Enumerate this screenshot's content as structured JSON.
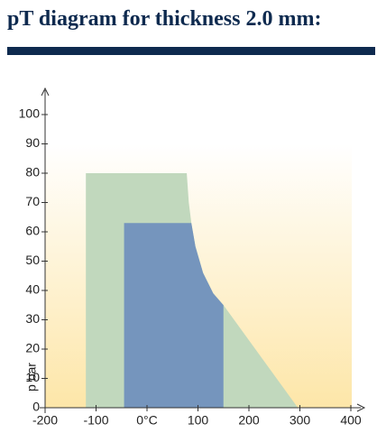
{
  "chart_data": {
    "type": "area",
    "title": "pT diagram for thickness 2.0 mm:",
    "y_label": "p bar",
    "xlim": [
      -200,
      400
    ],
    "ylim": [
      0,
      100
    ],
    "xticks": [
      -200,
      -100,
      {
        "value": 0,
        "label": "0°C"
      },
      100,
      200,
      300,
      400
    ],
    "yticks": [
      0,
      10,
      20,
      30,
      40,
      50,
      60,
      70,
      80,
      90,
      100
    ],
    "series": [
      {
        "color": "#c1d8bd",
        "x": [
          -120,
          -120,
          78,
          82,
          87,
          95,
          110,
          130,
          150,
          296
        ],
        "values": [
          0,
          80,
          80,
          70,
          63,
          55,
          46,
          39,
          35,
          0
        ]
      },
      {
        "color": "#7595bd",
        "x": [
          -45,
          -45,
          87,
          95,
          110,
          130,
          150,
          150
        ],
        "values": [
          0,
          63,
          63,
          55,
          46,
          39,
          35,
          0
        ]
      }
    ]
  }
}
